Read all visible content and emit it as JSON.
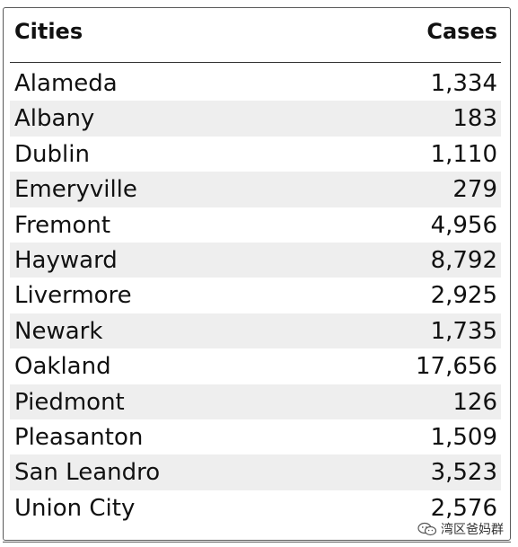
{
  "table": {
    "headers": {
      "city": "Cities",
      "cases": "Cases"
    },
    "rows": [
      {
        "city": "Alameda",
        "cases": "1,334"
      },
      {
        "city": "Albany",
        "cases": "183"
      },
      {
        "city": "Dublin",
        "cases": "1,110"
      },
      {
        "city": "Emeryville",
        "cases": "279"
      },
      {
        "city": "Fremont",
        "cases": "4,956"
      },
      {
        "city": "Hayward",
        "cases": "8,792"
      },
      {
        "city": "Livermore",
        "cases": "2,925"
      },
      {
        "city": "Newark",
        "cases": "1,735"
      },
      {
        "city": "Oakland",
        "cases": "17,656"
      },
      {
        "city": "Piedmont",
        "cases": "126"
      },
      {
        "city": "Pleasanton",
        "cases": "1,509"
      },
      {
        "city": "San Leandro",
        "cases": "3,523"
      },
      {
        "city": "Union City",
        "cases": "2,576"
      }
    ]
  },
  "watermark": {
    "icon": "wechat-icon",
    "text": "湾区爸妈群"
  },
  "colors": {
    "alt_row": "#eeeeee",
    "border": "#5a5a5a",
    "text": "#111111"
  }
}
